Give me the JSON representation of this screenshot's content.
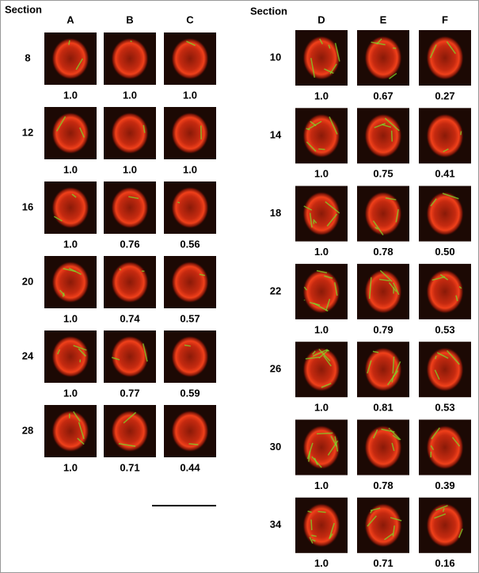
{
  "left": {
    "header": "Section",
    "columns": [
      "A",
      "B",
      "C"
    ],
    "rows": [
      {
        "section": "8",
        "values": [
          "1.0",
          "1.0",
          "1.0"
        ]
      },
      {
        "section": "12",
        "values": [
          "1.0",
          "1.0",
          "1.0"
        ]
      },
      {
        "section": "16",
        "values": [
          "1.0",
          "0.76",
          "0.56"
        ]
      },
      {
        "section": "20",
        "values": [
          "1.0",
          "0.74",
          "0.57"
        ]
      },
      {
        "section": "24",
        "values": [
          "1.0",
          "0.77",
          "0.59"
        ]
      },
      {
        "section": "28",
        "values": [
          "1.0",
          "0.71",
          "0.44"
        ]
      }
    ]
  },
  "right": {
    "header": "Section",
    "columns": [
      "D",
      "E",
      "F"
    ],
    "rows": [
      {
        "section": "10",
        "values": [
          "1.0",
          "0.67",
          "0.27"
        ]
      },
      {
        "section": "14",
        "values": [
          "1.0",
          "0.75",
          "0.41"
        ]
      },
      {
        "section": "18",
        "values": [
          "1.0",
          "0.78",
          "0.50"
        ]
      },
      {
        "section": "22",
        "values": [
          "1.0",
          "0.79",
          "0.53"
        ]
      },
      {
        "section": "26",
        "values": [
          "1.0",
          "0.81",
          "0.53"
        ]
      },
      {
        "section": "30",
        "values": [
          "1.0",
          "0.78",
          "0.39"
        ]
      },
      {
        "section": "34",
        "values": [
          "1.0",
          "0.71",
          "0.16"
        ]
      }
    ]
  }
}
